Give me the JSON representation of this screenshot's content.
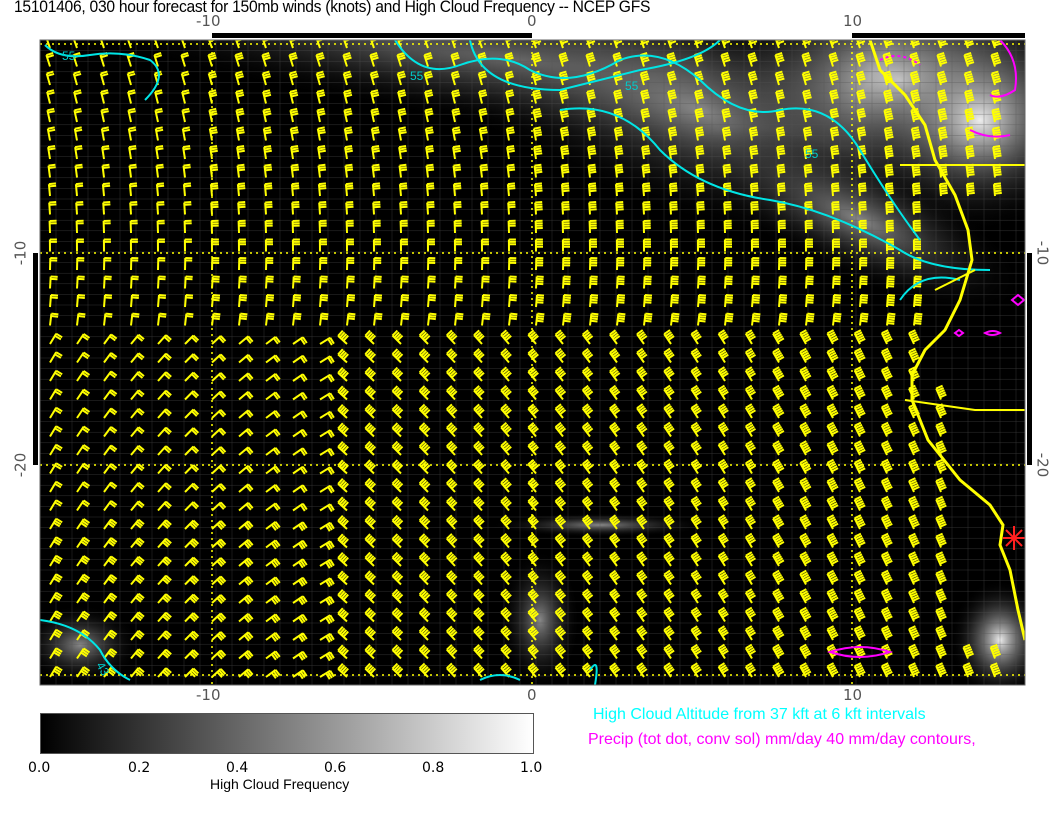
{
  "title": "15101406, 030 hour forecast for 150mb winds (knots) and High Cloud Frequency -- NCEP GFS",
  "map": {
    "lon_ticks": [
      "-10",
      "0",
      "10"
    ],
    "lat_ticks": [
      "-10",
      "-20"
    ],
    "lon_range": [
      -15.4,
      15.4
    ],
    "lat_range": [
      -30.4,
      0
    ],
    "contour_labels": [
      "55",
      "55",
      "55",
      "55",
      "43"
    ],
    "colors": {
      "wind_barbs": "#ffff00",
      "cloud_altitude_contours": "#00e5e5",
      "precip_contours": "#ff00ff",
      "coastline": "#ffff00",
      "marker": "#ff0000"
    }
  },
  "colorbar": {
    "label": "High Cloud Frequency",
    "ticks": [
      "0.0",
      "0.2",
      "0.4",
      "0.6",
      "0.8",
      "1.0"
    ],
    "range": [
      0,
      1
    ]
  },
  "legend": {
    "cloud_altitude": "High Cloud Altitude from 37 kft at 6 kft intervals",
    "precip": "Precip (tot dot, conv sol) mm/day 40 mm/day contours,"
  }
}
